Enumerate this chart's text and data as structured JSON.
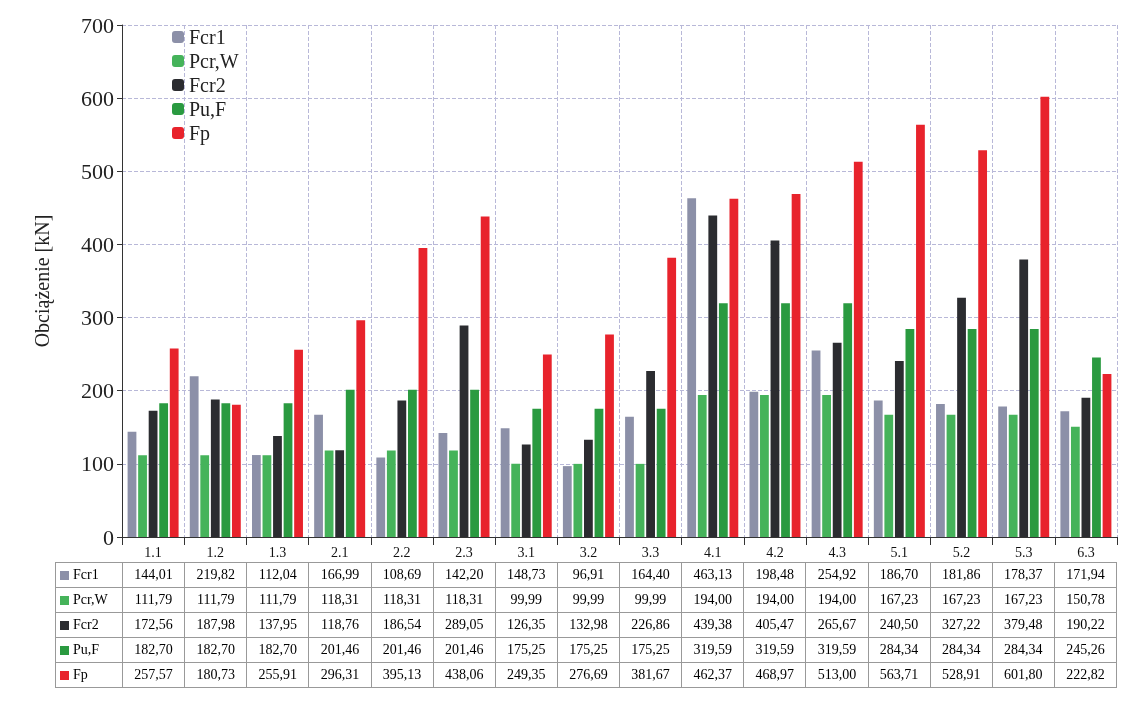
{
  "chart_data": {
    "type": "bar",
    "ylabel": "Obciążenie [kN]",
    "categories": [
      "1.1",
      "1.2",
      "1.3",
      "2.1",
      "2.2",
      "2.3",
      "3.1",
      "3.2",
      "3.3",
      "4.1",
      "4.2",
      "4.3",
      "5.1",
      "5.2",
      "5.3",
      "6.3"
    ],
    "series": [
      {
        "name": "Fcr1",
        "color": "#8c90a8",
        "values": [
          144.01,
          219.82,
          112.04,
          166.99,
          108.69,
          142.2,
          148.73,
          96.91,
          164.4,
          463.13,
          198.48,
          254.92,
          186.7,
          181.86,
          178.37,
          171.94
        ],
        "value_labels": [
          "144,01",
          "219,82",
          "112,04",
          "166,99",
          "108,69",
          "142,20",
          "148,73",
          "96,91",
          "164,40",
          "463,13",
          "198,48",
          "254,92",
          "186,70",
          "181,86",
          "178,37",
          "171,94"
        ]
      },
      {
        "name": "Pcr,W",
        "color": "#45b35a",
        "values": [
          111.79,
          111.79,
          111.79,
          118.31,
          118.31,
          118.31,
          99.99,
          99.99,
          99.99,
          194.0,
          194.0,
          194.0,
          167.23,
          167.23,
          167.23,
          150.78
        ],
        "value_labels": [
          "111,79",
          "111,79",
          "111,79",
          "118,31",
          "118,31",
          "118,31",
          "99,99",
          "99,99",
          "99,99",
          "194,00",
          "194,00",
          "194,00",
          "167,23",
          "167,23",
          "167,23",
          "150,78"
        ]
      },
      {
        "name": "Fcr2",
        "color": "#2b2c30",
        "values": [
          172.56,
          187.98,
          137.95,
          118.76,
          186.54,
          289.05,
          126.35,
          132.98,
          226.86,
          439.38,
          405.47,
          265.67,
          240.5,
          327.22,
          379.48,
          190.22
        ],
        "value_labels": [
          "172,56",
          "187,98",
          "137,95",
          "118,76",
          "186,54",
          "289,05",
          "126,35",
          "132,98",
          "226,86",
          "439,38",
          "405,47",
          "265,67",
          "240,50",
          "327,22",
          "379,48",
          "190,22"
        ]
      },
      {
        "name": "Pu,F",
        "color": "#2a9a40",
        "values": [
          182.7,
          182.7,
          182.7,
          201.46,
          201.46,
          201.46,
          175.25,
          175.25,
          175.25,
          319.59,
          319.59,
          319.59,
          284.34,
          284.34,
          284.34,
          245.26
        ],
        "value_labels": [
          "182,70",
          "182,70",
          "182,70",
          "201,46",
          "201,46",
          "201,46",
          "175,25",
          "175,25",
          "175,25",
          "319,59",
          "319,59",
          "319,59",
          "284,34",
          "284,34",
          "284,34",
          "245,26"
        ]
      },
      {
        "name": "Fp",
        "color": "#e8232c",
        "values": [
          257.57,
          180.73,
          255.91,
          296.31,
          395.13,
          438.06,
          249.35,
          276.69,
          381.67,
          462.37,
          468.97,
          513.0,
          563.71,
          528.91,
          601.8,
          222.82
        ],
        "value_labels": [
          "257,57",
          "180,73",
          "255,91",
          "296,31",
          "395,13",
          "438,06",
          "249,35",
          "276,69",
          "381,67",
          "462,37",
          "468,97",
          "513,00",
          "563,71",
          "528,91",
          "601,80",
          "222,82"
        ]
      }
    ],
    "ylim": [
      0,
      700
    ],
    "yticks": [
      0,
      100,
      200,
      300,
      400,
      500,
      600,
      700
    ],
    "grid": true,
    "legend": "left"
  }
}
